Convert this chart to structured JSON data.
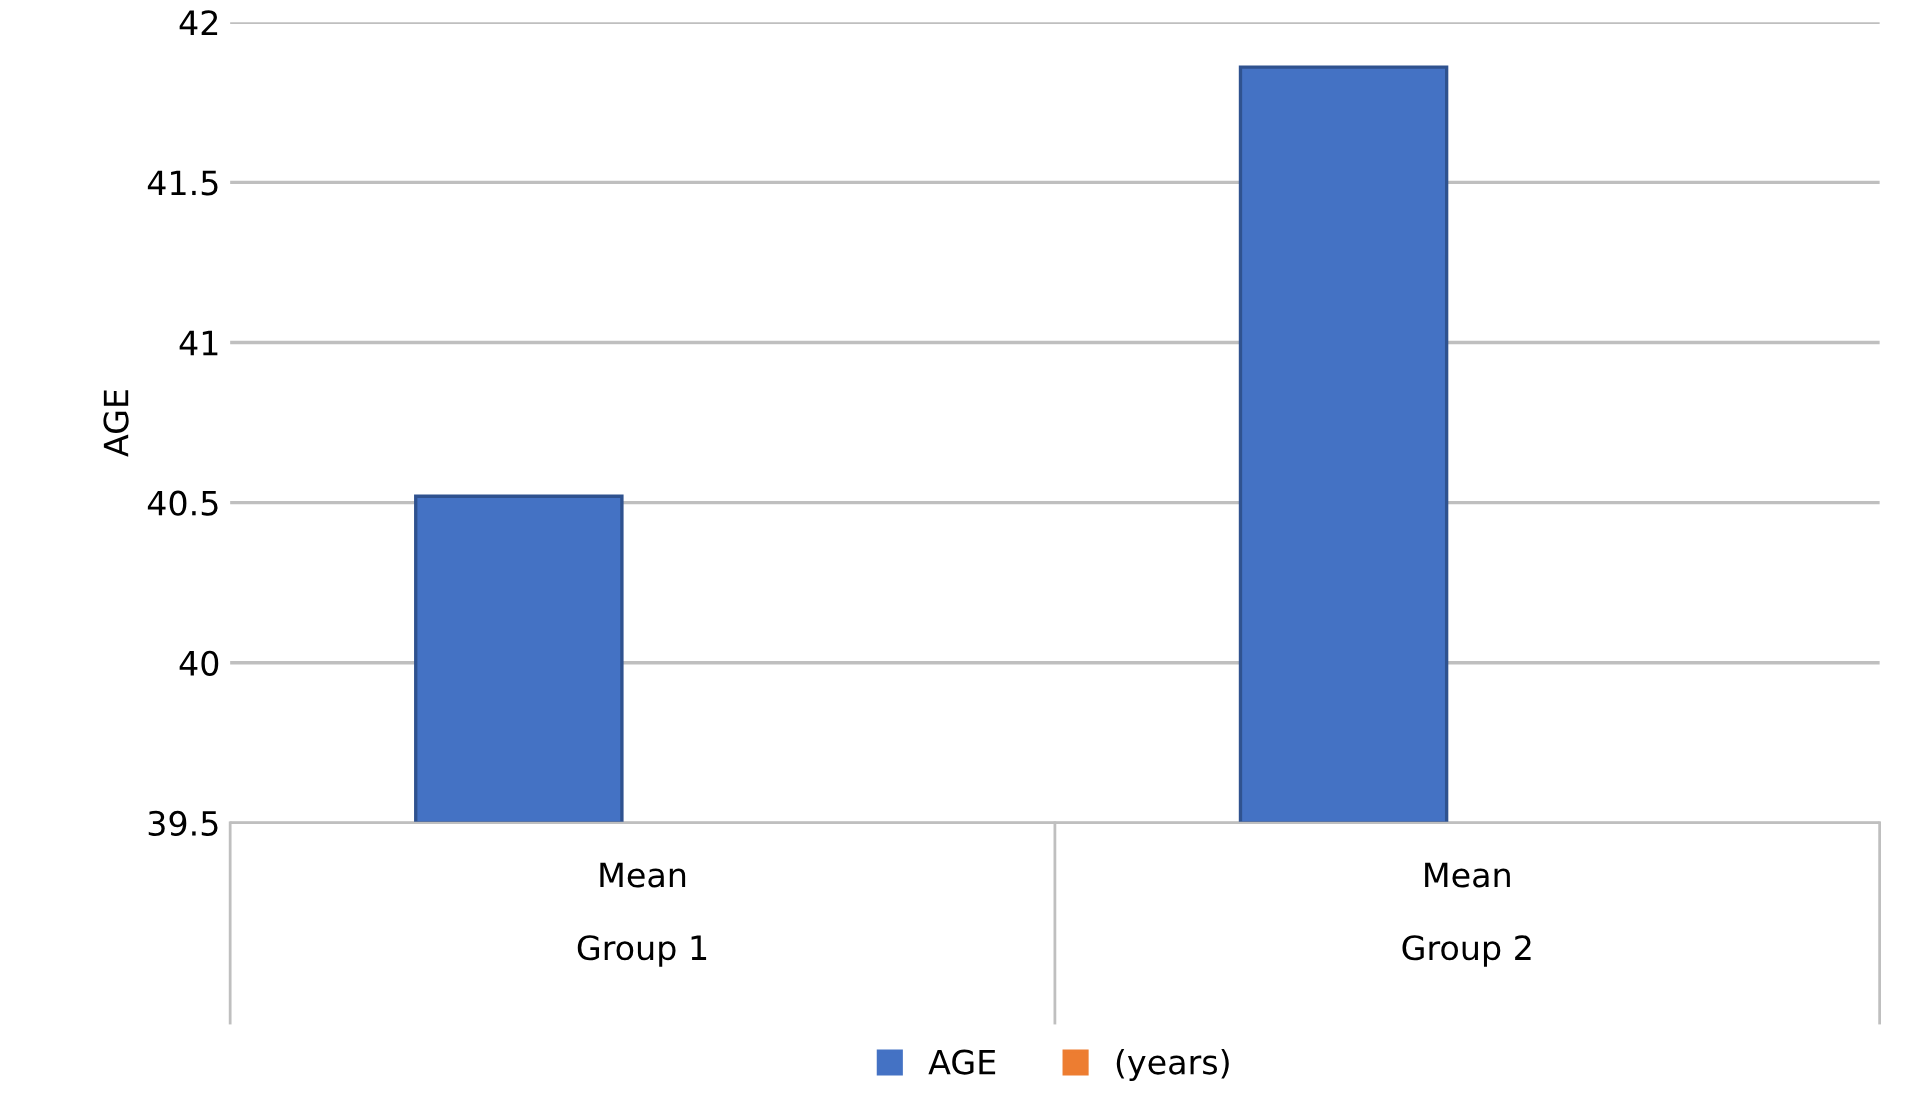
{
  "chart_data": {
    "type": "bar",
    "ylabel": "AGE",
    "categories": [
      "Mean\nGroup 1",
      "Mean\nGroup 2"
    ],
    "series": [
      {
        "name": "AGE",
        "color": "#4472c4",
        "values": [
          40.52,
          41.86
        ]
      },
      {
        "name": "(years)",
        "color": "#ed7d31",
        "values": [
          null,
          null
        ]
      }
    ],
    "ylim": [
      39.5,
      42
    ],
    "yticks": [
      39.5,
      40,
      40.5,
      41,
      41.5,
      42
    ],
    "grid": "y",
    "legend": "bottom"
  }
}
